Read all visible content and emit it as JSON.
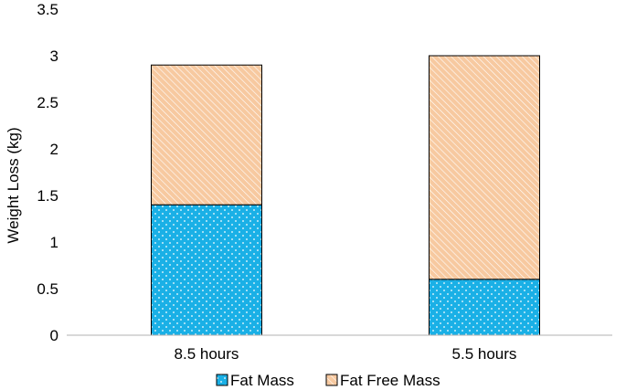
{
  "chart_data": {
    "type": "bar",
    "stacked": true,
    "categories": [
      "8.5 hours",
      "5.5 hours"
    ],
    "series": [
      {
        "name": "Fat Mass",
        "values": [
          1.4,
          0.6
        ],
        "color": "#1ab0e6",
        "pattern": "dots"
      },
      {
        "name": "Fat Free Mass",
        "values": [
          1.5,
          2.4
        ],
        "color": "#f7c9a0",
        "pattern": "diagonal-hatch"
      }
    ],
    "title": "",
    "xlabel": "",
    "ylabel": "Weight Loss (kg)",
    "ylim": [
      0,
      3.5
    ],
    "yticks": [
      "0",
      "0.5",
      "1",
      "1.5",
      "2",
      "2.5",
      "3",
      "3.5"
    ],
    "grid": false,
    "legend_position": "bottom"
  }
}
